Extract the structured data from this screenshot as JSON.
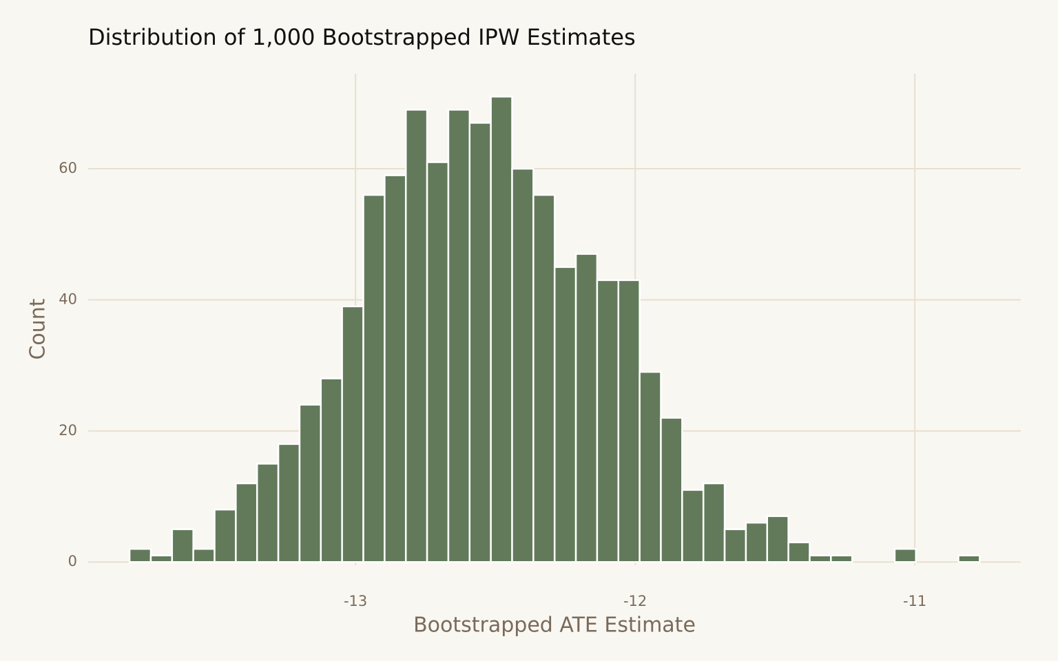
{
  "chart_data": {
    "type": "histogram",
    "title": "Distribution of 1,000 Bootstrapped IPW Estimates",
    "x_label": "Bootstrapped ATE Estimate",
    "y_label": "Count",
    "bins": [
      -13.808,
      -13.732,
      -13.656,
      -13.58,
      -13.504,
      -13.428,
      -13.352,
      -13.276,
      -13.2,
      -13.124,
      -13.048,
      -12.972,
      -12.896,
      -12.82,
      -12.744,
      -12.668,
      -12.592,
      -12.516,
      -12.44,
      -12.364,
      -12.288,
      -12.212,
      -12.136,
      -12.06,
      -11.984,
      -11.908,
      -11.832,
      -11.756,
      -11.68,
      -11.604,
      -11.528,
      -11.452,
      -11.376,
      -11.3,
      -11.224,
      -11.148,
      -11.072,
      -10.996,
      -10.92,
      -10.844,
      -10.768
    ],
    "values": [
      2,
      1,
      5,
      2,
      8,
      12,
      15,
      18,
      24,
      28,
      39,
      56,
      59,
      69,
      61,
      69,
      67,
      71,
      60,
      56,
      45,
      47,
      43,
      43,
      29,
      22,
      11,
      12,
      5,
      6,
      7,
      3,
      1,
      1,
      0,
      0,
      2,
      0,
      0,
      1
    ],
    "color": "#627a5a",
    "xlim": [
      -13.956,
      -10.621
    ],
    "ylim": [
      -0.5,
      74.5
    ],
    "xticks": [
      -13,
      -12,
      -11
    ],
    "yticks": [
      0,
      20,
      40,
      60
    ],
    "grid": true
  }
}
